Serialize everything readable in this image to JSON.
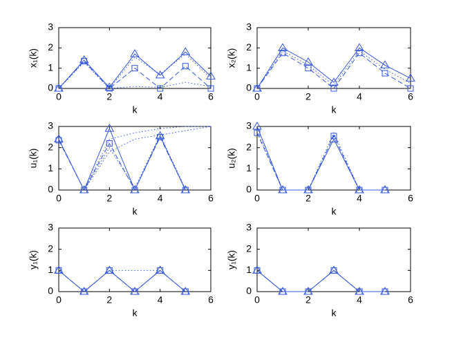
{
  "chart_data": [
    {
      "type": "line",
      "ylabel": "x₁(k)",
      "xlabel": "k",
      "x": [
        0,
        1,
        2,
        3,
        4,
        5,
        6
      ],
      "xlim": [
        0,
        6
      ],
      "xticks": [
        0,
        2,
        4,
        6
      ],
      "ylim": [
        0,
        3
      ],
      "yticks": [
        0,
        1,
        2,
        3
      ],
      "series": [
        {
          "color": "#3355dd",
          "style": "solid",
          "marker": "triangle",
          "values": [
            0,
            1.4,
            0.05,
            1.7,
            0.65,
            1.8,
            0.6
          ]
        },
        {
          "color": "#3355dd",
          "style": "dashed",
          "marker": "square",
          "values": [
            0,
            1.35,
            0,
            1.0,
            0,
            1.1,
            0
          ]
        },
        {
          "color": "#3355dd",
          "style": "dotted",
          "marker": "none",
          "values": [
            0,
            1.3,
            0,
            1.55,
            0.7,
            1.7,
            0.5
          ]
        },
        {
          "color": "#3355dd",
          "style": "dotted",
          "marker": "none",
          "values": [
            0,
            1.3,
            0,
            0.1,
            0.05,
            0.3,
            0.1
          ]
        }
      ]
    },
    {
      "type": "line",
      "ylabel": "x₂(k)",
      "xlabel": "k",
      "x": [
        0,
        1,
        2,
        3,
        4,
        5,
        6
      ],
      "xlim": [
        0,
        6
      ],
      "xticks": [
        0,
        2,
        4,
        6
      ],
      "ylim": [
        0,
        3
      ],
      "yticks": [
        0,
        1,
        2,
        3
      ],
      "series": [
        {
          "color": "#3355dd",
          "style": "solid",
          "marker": "triangle",
          "values": [
            0,
            2.0,
            1.3,
            0.3,
            2.0,
            1.15,
            0.5
          ]
        },
        {
          "color": "#3355dd",
          "style": "dashed",
          "marker": "square",
          "values": [
            0,
            1.75,
            1.0,
            0,
            1.75,
            0.75,
            0
          ]
        },
        {
          "color": "#3355dd",
          "style": "dotted",
          "marker": "none",
          "values": [
            0,
            1.85,
            1.15,
            0.15,
            1.85,
            0.95,
            0.25
          ]
        }
      ]
    },
    {
      "type": "line",
      "ylabel": "u₁(k)",
      "xlabel": "k",
      "x": [
        0,
        1,
        2,
        3,
        4,
        5,
        6
      ],
      "xlim": [
        0,
        6
      ],
      "xticks": [
        0,
        2,
        4,
        6
      ],
      "ylim": [
        0,
        3
      ],
      "yticks": [
        0,
        1,
        2,
        3
      ],
      "series": [
        {
          "color": "#3355dd",
          "style": "solid",
          "marker": "triangle",
          "values": [
            2.4,
            0,
            2.9,
            0,
            2.55,
            0,
            null
          ]
        },
        {
          "color": "#3355dd",
          "style": "dashed",
          "marker": "square",
          "values": [
            2.35,
            0,
            2.2,
            0,
            2.5,
            0,
            null
          ]
        },
        {
          "color": "#3355dd",
          "style": "dotted",
          "marker": "none",
          "values": [
            2.4,
            0,
            2.0,
            0.1,
            2.6,
            0.05,
            null
          ]
        },
        {
          "color": "#3355dd",
          "style": "dotted",
          "marker": "none",
          "values": [
            null,
            0,
            1.8,
            2.4,
            2.6,
            2.8,
            3.0
          ]
        },
        {
          "color": "#3355dd",
          "style": "dotted",
          "marker": "none",
          "values": [
            null,
            0,
            2.4,
            2.7,
            2.9,
            3.0,
            3.0
          ]
        }
      ]
    },
    {
      "type": "line",
      "ylabel": "u₂(k)",
      "xlabel": "k",
      "x": [
        0,
        1,
        2,
        3,
        4,
        5,
        6
      ],
      "xlim": [
        0,
        6
      ],
      "xticks": [
        0,
        2,
        4,
        6
      ],
      "ylim": [
        0,
        3
      ],
      "yticks": [
        0,
        1,
        2,
        3
      ],
      "series": [
        {
          "color": "#3355dd",
          "style": "solid",
          "marker": "triangle",
          "values": [
            3.0,
            0,
            0,
            2.4,
            0,
            0,
            null
          ]
        },
        {
          "color": "#3355dd",
          "style": "dashed",
          "marker": "square",
          "values": [
            2.7,
            0,
            0,
            2.55,
            0,
            0,
            null
          ]
        },
        {
          "color": "#3355dd",
          "style": "dotted",
          "marker": "none",
          "values": [
            2.8,
            0,
            0,
            2.7,
            0,
            0,
            null
          ]
        }
      ]
    },
    {
      "type": "line",
      "ylabel": "y₁(k)",
      "xlabel": "k",
      "x": [
        0,
        1,
        2,
        3,
        4,
        5,
        6
      ],
      "xlim": [
        0,
        6
      ],
      "xticks": [
        0,
        2,
        4,
        6
      ],
      "ylim": [
        0,
        3
      ],
      "yticks": [
        0,
        1,
        2,
        3
      ],
      "series": [
        {
          "color": "#3355dd",
          "style": "solid",
          "marker": "triangle",
          "values": [
            1,
            0,
            1,
            0,
            1,
            0,
            null
          ]
        },
        {
          "color": "#3355dd",
          "style": "dashed",
          "marker": "square",
          "values": [
            1,
            0,
            1,
            0,
            1,
            0,
            null
          ]
        },
        {
          "color": "#3355dd",
          "style": "dotted",
          "marker": "none",
          "values": [
            null,
            null,
            1,
            1,
            1,
            null,
            null
          ]
        }
      ]
    },
    {
      "type": "line",
      "ylabel": "y₁(k)",
      "xlabel": "k",
      "x": [
        0,
        1,
        2,
        3,
        4,
        5,
        6
      ],
      "xlim": [
        0,
        6
      ],
      "xticks": [
        0,
        2,
        4,
        6
      ],
      "ylim": [
        0,
        3
      ],
      "yticks": [
        0,
        1,
        2,
        3
      ],
      "series": [
        {
          "color": "#3355dd",
          "style": "solid",
          "marker": "triangle",
          "values": [
            1,
            0,
            0,
            1,
            0,
            0,
            null
          ]
        },
        {
          "color": "#3355dd",
          "style": "dashed",
          "marker": "square",
          "values": [
            1,
            0,
            0,
            1,
            0,
            0,
            null
          ]
        }
      ]
    }
  ]
}
